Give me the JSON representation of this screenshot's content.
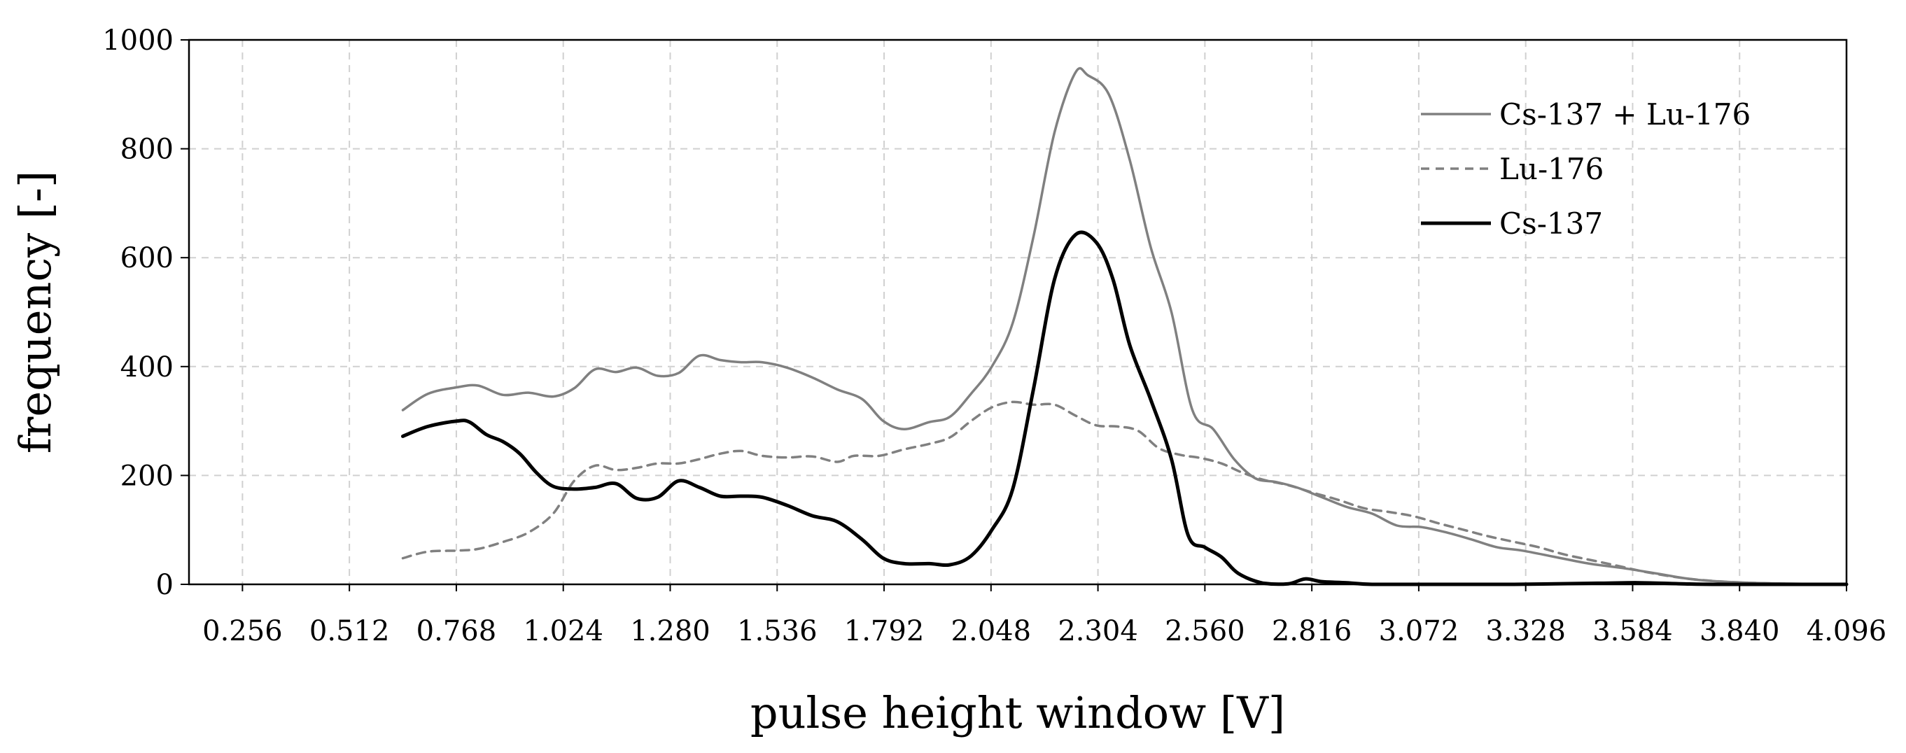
{
  "chart_data": {
    "type": "line",
    "title": "",
    "xlabel": "pulse height window [V]",
    "ylabel": "frequency [-]",
    "xlim": [
      0.128,
      4.096
    ],
    "ylim": [
      0,
      1000
    ],
    "x_ticks": [
      "0.256",
      "0.512",
      "0.768",
      "1.024",
      "1.280",
      "1.536",
      "1.792",
      "2.048",
      "2.304",
      "2.560",
      "2.816",
      "3.072",
      "3.328",
      "3.584",
      "3.840",
      "4.096"
    ],
    "y_ticks": [
      "0",
      "200",
      "400",
      "600",
      "800",
      "1000"
    ],
    "grid": true,
    "legend_position": "top-right",
    "series": [
      {
        "name": "Cs-137 + Lu-176",
        "style": "solid",
        "color": "#808080",
        "points": [
          [
            0.64,
            320
          ],
          [
            0.7,
            350
          ],
          [
            0.77,
            362
          ],
          [
            0.82,
            365
          ],
          [
            0.88,
            348
          ],
          [
            0.94,
            352
          ],
          [
            1.0,
            345
          ],
          [
            1.05,
            360
          ],
          [
            1.1,
            395
          ],
          [
            1.15,
            390
          ],
          [
            1.2,
            398
          ],
          [
            1.25,
            383
          ],
          [
            1.3,
            388
          ],
          [
            1.35,
            420
          ],
          [
            1.4,
            412
          ],
          [
            1.45,
            408
          ],
          [
            1.5,
            408
          ],
          [
            1.56,
            398
          ],
          [
            1.62,
            380
          ],
          [
            1.68,
            358
          ],
          [
            1.74,
            340
          ],
          [
            1.79,
            300
          ],
          [
            1.84,
            285
          ],
          [
            1.9,
            298
          ],
          [
            1.95,
            308
          ],
          [
            2.0,
            350
          ],
          [
            2.05,
            400
          ],
          [
            2.1,
            480
          ],
          [
            2.15,
            640
          ],
          [
            2.2,
            830
          ],
          [
            2.25,
            940
          ],
          [
            2.28,
            935
          ],
          [
            2.33,
            900
          ],
          [
            2.38,
            780
          ],
          [
            2.43,
            620
          ],
          [
            2.48,
            500
          ],
          [
            2.53,
            320
          ],
          [
            2.58,
            285
          ],
          [
            2.63,
            230
          ],
          [
            2.68,
            195
          ],
          [
            2.73,
            188
          ],
          [
            2.78,
            178
          ],
          [
            2.84,
            160
          ],
          [
            2.9,
            142
          ],
          [
            2.96,
            130
          ],
          [
            3.02,
            108
          ],
          [
            3.08,
            105
          ],
          [
            3.14,
            95
          ],
          [
            3.2,
            82
          ],
          [
            3.26,
            68
          ],
          [
            3.32,
            62
          ],
          [
            3.4,
            50
          ],
          [
            3.48,
            38
          ],
          [
            3.56,
            30
          ],
          [
            3.64,
            20
          ],
          [
            3.72,
            10
          ],
          [
            3.8,
            5
          ],
          [
            3.9,
            2
          ],
          [
            4.0,
            1
          ],
          [
            4.096,
            0
          ]
        ]
      },
      {
        "name": "Lu-176",
        "style": "dashed",
        "color": "#808080",
        "points": [
          [
            0.64,
            48
          ],
          [
            0.7,
            60
          ],
          [
            0.77,
            62
          ],
          [
            0.82,
            65
          ],
          [
            0.88,
            78
          ],
          [
            0.94,
            95
          ],
          [
            1.0,
            130
          ],
          [
            1.05,
            190
          ],
          [
            1.1,
            218
          ],
          [
            1.15,
            210
          ],
          [
            1.2,
            214
          ],
          [
            1.25,
            222
          ],
          [
            1.3,
            222
          ],
          [
            1.35,
            230
          ],
          [
            1.4,
            240
          ],
          [
            1.45,
            245
          ],
          [
            1.5,
            236
          ],
          [
            1.56,
            233
          ],
          [
            1.62,
            235
          ],
          [
            1.68,
            225
          ],
          [
            1.72,
            236
          ],
          [
            1.78,
            236
          ],
          [
            1.84,
            248
          ],
          [
            1.9,
            258
          ],
          [
            1.95,
            270
          ],
          [
            2.0,
            300
          ],
          [
            2.05,
            325
          ],
          [
            2.1,
            335
          ],
          [
            2.15,
            330
          ],
          [
            2.2,
            330
          ],
          [
            2.25,
            310
          ],
          [
            2.3,
            292
          ],
          [
            2.35,
            290
          ],
          [
            2.4,
            282
          ],
          [
            2.45,
            250
          ],
          [
            2.5,
            238
          ],
          [
            2.55,
            232
          ],
          [
            2.6,
            222
          ],
          [
            2.65,
            205
          ],
          [
            2.7,
            192
          ],
          [
            2.76,
            182
          ],
          [
            2.82,
            168
          ],
          [
            2.88,
            155
          ],
          [
            2.94,
            140
          ],
          [
            3.0,
            133
          ],
          [
            3.06,
            125
          ],
          [
            3.12,
            112
          ],
          [
            3.18,
            100
          ],
          [
            3.24,
            88
          ],
          [
            3.3,
            78
          ],
          [
            3.36,
            68
          ],
          [
            3.42,
            55
          ],
          [
            3.5,
            42
          ],
          [
            3.56,
            32
          ],
          [
            3.62,
            22
          ],
          [
            3.7,
            12
          ],
          [
            3.78,
            6
          ],
          [
            3.86,
            3
          ],
          [
            3.96,
            1
          ],
          [
            4.096,
            0
          ]
        ]
      },
      {
        "name": "Cs-137",
        "style": "solid",
        "color": "#000000",
        "points": [
          [
            0.64,
            272
          ],
          [
            0.7,
            290
          ],
          [
            0.77,
            300
          ],
          [
            0.8,
            298
          ],
          [
            0.84,
            275
          ],
          [
            0.88,
            262
          ],
          [
            0.92,
            240
          ],
          [
            0.96,
            205
          ],
          [
            1.0,
            180
          ],
          [
            1.05,
            175
          ],
          [
            1.1,
            178
          ],
          [
            1.15,
            185
          ],
          [
            1.2,
            158
          ],
          [
            1.25,
            160
          ],
          [
            1.3,
            190
          ],
          [
            1.35,
            178
          ],
          [
            1.4,
            162
          ],
          [
            1.45,
            162
          ],
          [
            1.5,
            160
          ],
          [
            1.56,
            145
          ],
          [
            1.62,
            126
          ],
          [
            1.68,
            115
          ],
          [
            1.74,
            82
          ],
          [
            1.79,
            48
          ],
          [
            1.84,
            38
          ],
          [
            1.9,
            38
          ],
          [
            1.95,
            36
          ],
          [
            2.0,
            52
          ],
          [
            2.05,
            100
          ],
          [
            2.1,
            175
          ],
          [
            2.15,
            360
          ],
          [
            2.2,
            560
          ],
          [
            2.25,
            642
          ],
          [
            2.3,
            628
          ],
          [
            2.34,
            560
          ],
          [
            2.38,
            440
          ],
          [
            2.43,
            340
          ],
          [
            2.48,
            230
          ],
          [
            2.52,
            90
          ],
          [
            2.56,
            68
          ],
          [
            2.6,
            50
          ],
          [
            2.64,
            20
          ],
          [
            2.7,
            2
          ],
          [
            2.76,
            1
          ],
          [
            2.8,
            10
          ],
          [
            2.84,
            5
          ],
          [
            2.9,
            3
          ],
          [
            2.96,
            0
          ],
          [
            3.1,
            0
          ],
          [
            3.3,
            0
          ],
          [
            3.5,
            2
          ],
          [
            3.6,
            3
          ],
          [
            3.7,
            1
          ],
          [
            3.8,
            0
          ],
          [
            4.096,
            0
          ]
        ]
      }
    ]
  }
}
